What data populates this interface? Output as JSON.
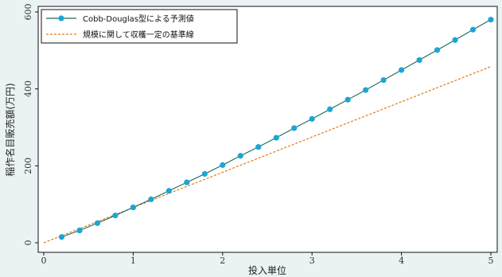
{
  "chart_data": {
    "type": "line",
    "title": "",
    "xlabel": "投入単位",
    "ylabel": "稲作名目販売額(万円)",
    "xlim": [
      0,
      5
    ],
    "ylim": [
      0,
      600
    ],
    "xticks": [
      0,
      1,
      2,
      3,
      4,
      5
    ],
    "yticks": [
      0,
      200,
      400,
      600
    ],
    "grid": false,
    "legend_position": "top-left",
    "series": [
      {
        "name": "Cobb-Douglas型による予測値",
        "style": "solid-line-with-markers",
        "line_color": "#1a6b5a",
        "marker_color": "#1aa6d6",
        "x": [
          0.2,
          0.4,
          0.6,
          0.8,
          1.0,
          1.2,
          1.4,
          1.6,
          1.8,
          2.0,
          2.2,
          2.4,
          2.6,
          2.8,
          3.0,
          3.2,
          3.4,
          3.6,
          3.8,
          4.0,
          4.2,
          4.4,
          4.6,
          4.8,
          5.0
        ],
        "y": [
          15,
          32,
          51,
          71,
          92,
          113,
          135,
          157,
          179,
          202,
          226,
          249,
          273,
          298,
          322,
          347,
          372,
          397,
          423,
          449,
          475,
          501,
          527,
          554,
          580
        ]
      },
      {
        "name": "規模に関して収穫一定の基準線",
        "style": "dashed-line",
        "line_color": "#e07b1a",
        "x": [
          0,
          5
        ],
        "y": [
          0,
          458
        ]
      }
    ]
  }
}
